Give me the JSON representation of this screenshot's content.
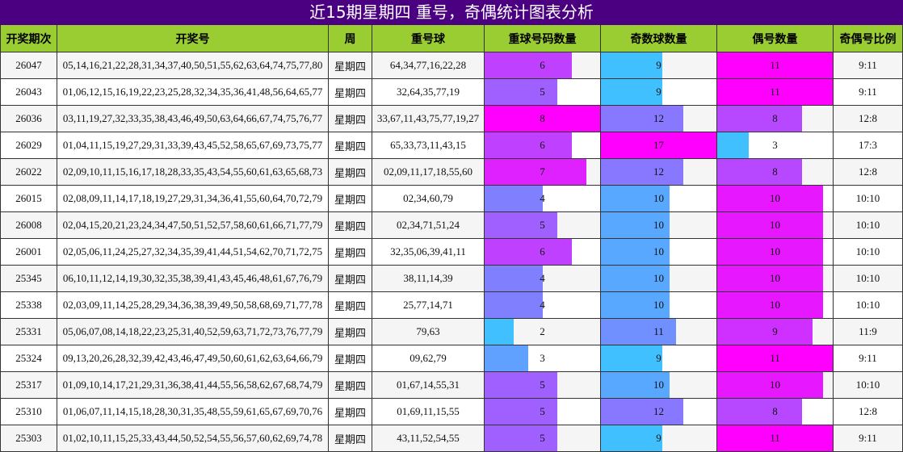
{
  "title": "近15期星期四 重号，奇偶统计图表分析",
  "table": {
    "columns": [
      "开奖期次",
      "开奖号",
      "周",
      "重号球",
      "重球号码数量",
      "奇数球数量",
      "偶号数量",
      "奇偶号比例"
    ],
    "rows": [
      [
        "26047",
        "05,14,16,21,22,28,31,34,37,40,50,51,55,62,63,64,74,75,77,80",
        "星期四",
        "64,34,77,16,22,28",
        6,
        9,
        11,
        "9:11"
      ],
      [
        "26043",
        "01,06,12,15,16,19,22,23,25,28,32,34,35,36,41,48,56,64,65,77",
        "星期四",
        "32,64,35,77,19",
        5,
        9,
        11,
        "9:11"
      ],
      [
        "26036",
        "03,11,19,27,32,33,35,38,43,46,49,50,63,64,66,67,74,75,76,77",
        "星期四",
        "33,67,11,43,75,77,19,27",
        8,
        12,
        8,
        "12:8"
      ],
      [
        "26029",
        "01,04,11,15,19,27,29,31,33,39,43,45,52,58,65,67,69,73,75,77",
        "星期四",
        "65,33,73,11,43,15",
        6,
        17,
        3,
        "17:3"
      ],
      [
        "26022",
        "02,09,10,11,15,16,17,18,28,33,35,43,54,55,60,61,63,65,68,73",
        "星期四",
        "02,09,11,17,18,55,60",
        7,
        12,
        8,
        "12:8"
      ],
      [
        "26015",
        "02,08,09,11,14,17,18,19,27,29,31,34,36,41,55,60,64,70,72,79",
        "星期四",
        "02,34,60,79",
        4,
        10,
        10,
        "10:10"
      ],
      [
        "26008",
        "02,04,15,20,21,23,24,34,47,50,51,52,57,58,60,61,66,71,77,79",
        "星期四",
        "02,34,71,51,24",
        5,
        10,
        10,
        "10:10"
      ],
      [
        "26001",
        "02,05,06,11,24,25,27,32,34,35,39,41,44,51,54,62,70,71,72,75",
        "星期四",
        "32,35,06,39,41,11",
        6,
        10,
        10,
        "10:10"
      ],
      [
        "25345",
        "06,10,11,12,14,19,30,32,35,38,39,41,43,45,46,48,61,67,76,79",
        "星期四",
        "38,11,14,39",
        4,
        10,
        10,
        "10:10"
      ],
      [
        "25338",
        "02,03,09,11,14,25,28,29,34,36,38,39,49,50,58,68,69,71,77,78",
        "星期四",
        "25,77,14,71",
        4,
        10,
        10,
        "10:10"
      ],
      [
        "25331",
        "05,06,07,08,14,18,22,23,25,31,40,52,59,63,71,72,73,76,77,79",
        "星期四",
        "79,63",
        2,
        11,
        9,
        "11:9"
      ],
      [
        "25324",
        "09,13,20,26,28,32,39,42,43,46,47,49,50,60,61,62,63,64,66,79",
        "星期四",
        "09,62,79",
        3,
        9,
        11,
        "9:11"
      ],
      [
        "25317",
        "01,09,10,14,17,21,29,31,36,38,41,44,55,56,58,62,67,68,74,79",
        "星期四",
        "01,67,14,55,31",
        5,
        10,
        10,
        "10:10"
      ],
      [
        "25310",
        "01,06,07,11,14,15,18,28,30,31,35,48,55,59,61,65,67,69,70,76",
        "星期四",
        "01,69,11,15,55",
        5,
        12,
        8,
        "12:8"
      ],
      [
        "25303",
        "01,02,10,11,15,25,33,43,44,50,52,54,55,56,57,60,62,69,74,78",
        "星期四",
        "43,11,52,54,55",
        5,
        9,
        11,
        "9:11"
      ]
    ]
  }
}
